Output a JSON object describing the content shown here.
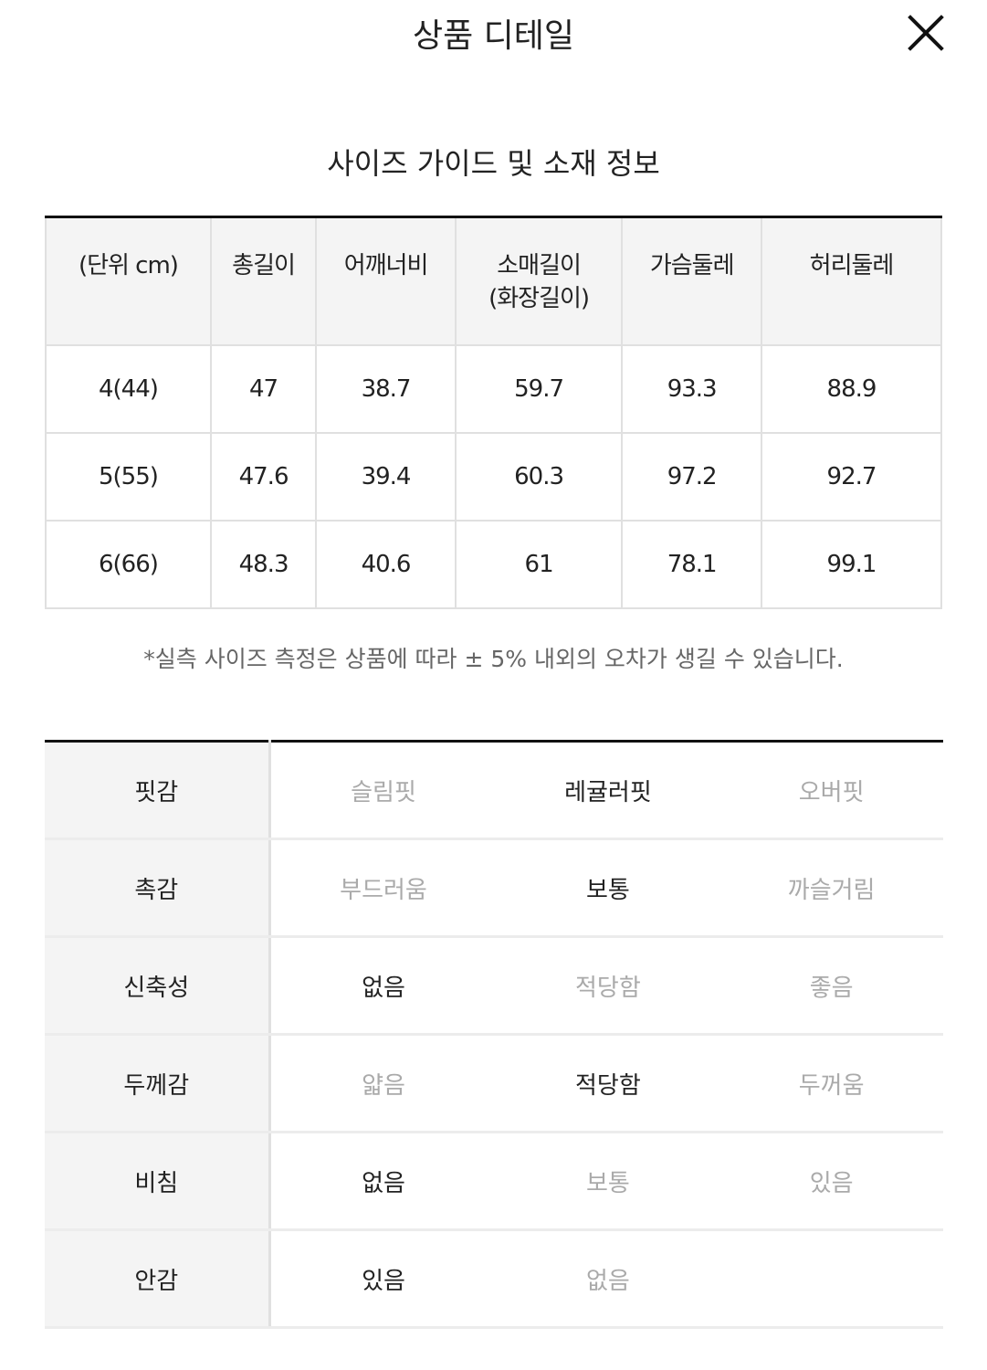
{
  "header": {
    "title": "상품 디테일",
    "close_icon": "close-icon"
  },
  "section_title": "사이즈 가이드 및 소재 정보",
  "size_table": {
    "headers": [
      "(단위 cm)",
      "총길이",
      "어깨너비",
      "소매길이\n(화장길이)",
      "가슴둘레",
      "허리둘레"
    ],
    "rows": [
      [
        "4(44)",
        "47",
        "38.7",
        "59.7",
        "93.3",
        "88.9"
      ],
      [
        "5(55)",
        "47.6",
        "39.4",
        "60.3",
        "97.2",
        "92.7"
      ],
      [
        "6(66)",
        "48.3",
        "40.6",
        "61",
        "78.1",
        "99.1"
      ]
    ]
  },
  "note": "*실측 사이즈 측정은 상품에 따라 ± 5% 내외의 오차가 생길 수 있습니다.",
  "material_table": {
    "rows": [
      {
        "label": "핏감",
        "options": [
          "슬림핏",
          "레귤러핏",
          "오버핏"
        ],
        "selected": 1
      },
      {
        "label": "촉감",
        "options": [
          "부드러움",
          "보통",
          "까슬거림"
        ],
        "selected": 1
      },
      {
        "label": "신축성",
        "options": [
          "없음",
          "적당함",
          "좋음"
        ],
        "selected": 0
      },
      {
        "label": "두께감",
        "options": [
          "얇음",
          "적당함",
          "두꺼움"
        ],
        "selected": 1
      },
      {
        "label": "비침",
        "options": [
          "없음",
          "보통",
          "있음"
        ],
        "selected": 0
      },
      {
        "label": "안감",
        "options": [
          "있음",
          "없음",
          ""
        ],
        "selected": 0
      }
    ]
  },
  "colors": {
    "selected": "#222222",
    "unselected": "#aaaaaa",
    "header_bg": "#f4f4f4"
  }
}
